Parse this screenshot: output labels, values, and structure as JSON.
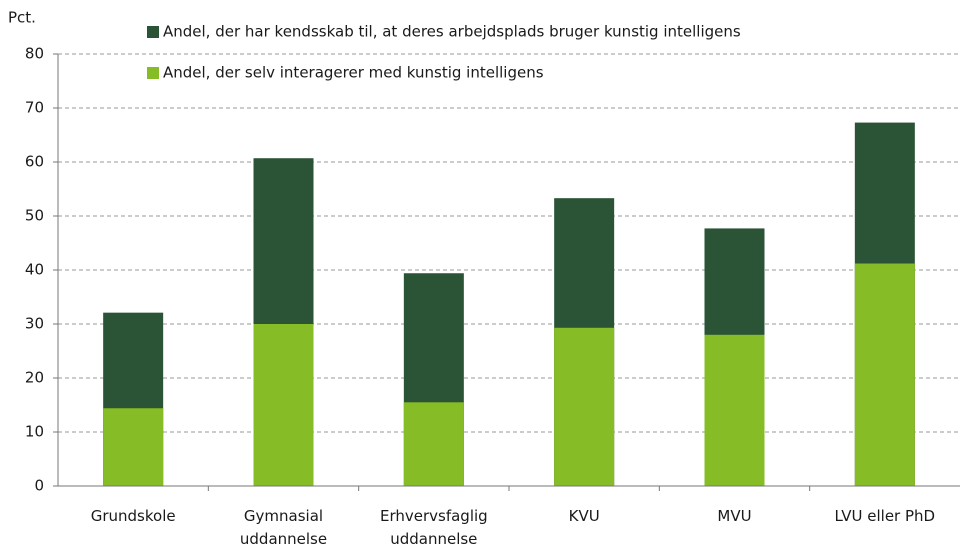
{
  "chart_data": {
    "type": "bar",
    "y_axis_label": "Pct.",
    "categories": [
      "Grundskole",
      "Gymnasial\nuddannelse",
      "Erhvervsfaglig\nuddannelse",
      "KVU",
      "MVU",
      "LVU eller PhD"
    ],
    "series": [
      {
        "name": "Andel, der har kendsskab til, at deres arbejdsplads bruger kunstig intelligens",
        "color": "#2b5336",
        "values": [
          32.1,
          60.7,
          39.4,
          53.3,
          47.7,
          67.3
        ]
      },
      {
        "name": "Andel, der selv interagerer med kunstig intelligens",
        "color": "#86bc25",
        "values": [
          14.4,
          30.0,
          15.5,
          29.3,
          28.0,
          41.2
        ]
      }
    ],
    "ylim": [
      0,
      80
    ],
    "yticks": [
      0,
      10,
      20,
      30,
      40,
      50,
      60,
      70,
      80
    ],
    "grid": true
  }
}
